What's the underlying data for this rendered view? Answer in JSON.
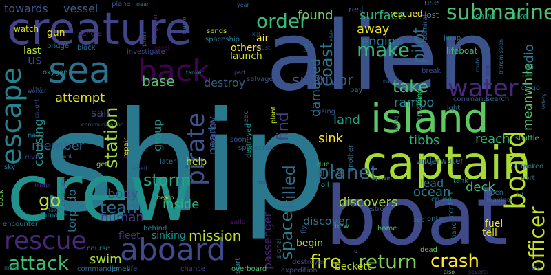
{
  "background": "#000000",
  "words": [
    {
      "text": "ship",
      "color": "#2a788e"
    },
    {
      "text": "alien",
      "color": "#3b528b"
    },
    {
      "text": "crew",
      "color": "#21918c"
    },
    {
      "text": "boat",
      "color": "#3e4a89"
    },
    {
      "text": "creature",
      "color": "#414487"
    },
    {
      "text": "captain",
      "color": "#a5db36"
    },
    {
      "text": "island",
      "color": "#5ec962"
    },
    {
      "text": "sea",
      "color": "#2c728e"
    },
    {
      "text": "aboard",
      "color": "#3e4a89"
    },
    {
      "text": "back",
      "color": "#440154"
    },
    {
      "text": "escape",
      "color": "#26828e"
    },
    {
      "text": "water",
      "color": "#482878"
    },
    {
      "text": "rescue",
      "color": "#482878"
    },
    {
      "text": "submarine",
      "color": "#4ac16d"
    },
    {
      "text": "board",
      "color": "#b8de29"
    },
    {
      "text": "pirate",
      "color": "#3b528b"
    },
    {
      "text": "order",
      "color": "#38b977"
    },
    {
      "text": "attack",
      "color": "#3dbc74"
    },
    {
      "text": "return",
      "color": "#7ad151"
    },
    {
      "text": "crash",
      "color": "#fde725"
    },
    {
      "text": "fire",
      "color": "#d2e21b"
    },
    {
      "text": "planet",
      "color": "#31688e"
    },
    {
      "text": "officer",
      "color": "#c8e020"
    },
    {
      "text": "make",
      "color": "#35b779"
    },
    {
      "text": "survivor",
      "color": "#3a548c"
    },
    {
      "text": "take",
      "color": "#4ac16d"
    },
    {
      "text": "storm",
      "color": "#22a884"
    },
    {
      "text": "station",
      "color": "#9fda3a"
    },
    {
      "text": "team",
      "color": "#2c728e"
    },
    {
      "text": "killed",
      "color": "#2e6e8e"
    },
    {
      "text": "space",
      "color": "#287d8e"
    },
    {
      "text": "coast",
      "color": "#2a788e"
    },
    {
      "text": "pilot",
      "color": "#306a8e"
    },
    {
      "text": "found",
      "color": "#6ccd5a"
    },
    {
      "text": "surface",
      "color": "#2db27d"
    },
    {
      "text": "mission",
      "color": "#bddf26"
    },
    {
      "text": "ocean",
      "color": "#25858e"
    },
    {
      "text": "find",
      "color": "#433e85"
    },
    {
      "text": "discovers",
      "color": "#a0da39"
    },
    {
      "text": "go",
      "color": "#c2df23"
    },
    {
      "text": "base",
      "color": "#50c46a"
    },
    {
      "text": "reach",
      "color": "#2fb47c"
    },
    {
      "text": "away",
      "color": "#e5e419"
    },
    {
      "text": "deck",
      "color": "#3dbc74"
    },
    {
      "text": "radio",
      "color": "#2a788e"
    },
    {
      "text": "damaged",
      "color": "#2e6e8e"
    },
    {
      "text": "engine",
      "color": "#2a768e"
    },
    {
      "text": "rambo",
      "color": "#27808e"
    },
    {
      "text": "tibbs",
      "color": "#2db27d"
    },
    {
      "text": "meanwhile",
      "color": "#54c568"
    },
    {
      "text": "sink",
      "color": "#fde725"
    },
    {
      "text": "land",
      "color": "#1f9f88"
    },
    {
      "text": "body",
      "color": "#3b528b"
    },
    {
      "text": "torpedo",
      "color": "#2a788e"
    },
    {
      "text": "human",
      "color": "#443a83"
    },
    {
      "text": "inside",
      "color": "#2db27d"
    },
    {
      "text": "swim",
      "color": "#addc30"
    },
    {
      "text": "destroy",
      "color": "#355f8d"
    },
    {
      "text": "attempt",
      "color": "#dde318"
    },
    {
      "text": "member",
      "color": "#31688e"
    },
    {
      "text": "causing",
      "color": "#21918c"
    },
    {
      "text": "towards",
      "color": "#39558c"
    },
    {
      "text": "vessel",
      "color": "#34618d"
    },
    {
      "text": "passenger",
      "color": "#482475"
    },
    {
      "text": "discover",
      "color": "#2b748e"
    },
    {
      "text": "nearby",
      "color": "#33638d"
    },
    {
      "text": "group",
      "color": "#20928c"
    },
    {
      "text": "lead",
      "color": "#2b748e"
    },
    {
      "text": "sail",
      "color": "#3e4989"
    },
    {
      "text": "us",
      "color": "#3f4788"
    },
    {
      "text": "beckett",
      "color": "#c2df23"
    },
    {
      "text": "fleet",
      "color": "#46337f"
    },
    {
      "text": "sinking",
      "color": "#21918c"
    },
    {
      "text": "fuel",
      "color": "#fde725"
    },
    {
      "text": "tell",
      "color": "#e2e418"
    },
    {
      "text": "begin",
      "color": "#b5de2b"
    },
    {
      "text": "killing",
      "color": "#2d718e"
    },
    {
      "text": "help",
      "color": "#c8e020"
    },
    {
      "text": "others",
      "color": "#fde725"
    },
    {
      "text": "launch",
      "color": "#d0e11c"
    },
    {
      "text": "air",
      "color": "#fde725"
    },
    {
      "text": "gun",
      "color": "#e7e419"
    },
    {
      "text": "last",
      "color": "#b5de2b"
    },
    {
      "text": "watch",
      "color": "#d8e219"
    },
    {
      "text": "plane",
      "color": "#3b528b"
    },
    {
      "text": "near",
      "color": "#23888e"
    },
    {
      "text": "year",
      "color": "#31688e"
    },
    {
      "text": "use",
      "color": "#2d708e"
    },
    {
      "text": "rest",
      "color": "#3b528b"
    },
    {
      "text": "rescued",
      "color": "#f1e51d"
    },
    {
      "text": "lost",
      "color": "#26828e"
    },
    {
      "text": "save",
      "color": "#1f9a8a"
    },
    {
      "text": "like",
      "color": "#22a785"
    },
    {
      "text": "lifeboat",
      "color": "#3aba76"
    },
    {
      "text": "admiral",
      "color": "#34618d"
    },
    {
      "text": "spaceship",
      "color": "#297b8e"
    },
    {
      "text": "sends",
      "color": "#b8de29"
    },
    {
      "text": "plan",
      "color": "#424086"
    },
    {
      "text": "ashore",
      "color": "#482979"
    },
    {
      "text": "bridge",
      "color": "#2c728e"
    },
    {
      "text": "black",
      "color": "#2d718e"
    },
    {
      "text": "investigate",
      "color": "#3f4788"
    },
    {
      "text": "naval",
      "color": "#450559"
    },
    {
      "text": "engineer",
      "color": "#453581"
    },
    {
      "text": "oxygen",
      "color": "#21908d"
    },
    {
      "text": "tanker",
      "color": "#26828e"
    },
    {
      "text": "salvage",
      "color": "#3a548c"
    },
    {
      "text": "using",
      "color": "#3b528b"
    },
    {
      "text": "due",
      "color": "#60ca60"
    },
    {
      "text": "bay",
      "color": "#26828e"
    },
    {
      "text": "another",
      "color": "#2d718e"
    },
    {
      "text": "underwater",
      "color": "#2d718e"
    },
    {
      "text": "attacked",
      "color": "#2a788e"
    },
    {
      "text": "shuttle",
      "color": "#4ac16d"
    },
    {
      "text": "command",
      "color": "#3b528b"
    },
    {
      "text": "search",
      "color": "#2c738e"
    },
    {
      "text": "remaining",
      "color": "#3dbc74"
    },
    {
      "text": "light",
      "color": "#2d718e"
    },
    {
      "text": "get",
      "color": "#7fd34e"
    },
    {
      "text": "later",
      "color": "#2c728e"
    },
    {
      "text": "sky",
      "color": "#2c728e"
    },
    {
      "text": "dive",
      "color": "#3e4c8a"
    },
    {
      "text": "navy",
      "color": "#2b758e"
    },
    {
      "text": "plant",
      "color": "#bddf26"
    },
    {
      "text": "destroyed",
      "color": "#1f998a"
    },
    {
      "text": "spacecraft",
      "color": "#38598c"
    },
    {
      "text": "soon",
      "color": "#39568c"
    },
    {
      "text": "head",
      "color": "#32648e"
    },
    {
      "text": "control",
      "color": "#414487"
    },
    {
      "text": "repair",
      "color": "#fde725"
    },
    {
      "text": "communication",
      "color": "#2d708e"
    },
    {
      "text": "giant",
      "color": "#2b758e"
    },
    {
      "text": "caught",
      "color": "#3e4a89"
    },
    {
      "text": "small",
      "color": "#3e4a89"
    },
    {
      "text": "map",
      "color": "#472c7a"
    },
    {
      "text": "damage",
      "color": "#26818e"
    },
    {
      "text": "dock",
      "color": "#77d153"
    },
    {
      "text": "encounter",
      "color": "#24878e"
    },
    {
      "text": "mate",
      "color": "#31688e"
    },
    {
      "text": "commander",
      "color": "#32658e"
    },
    {
      "text": "course",
      "color": "#2a788e"
    },
    {
      "text": "jones",
      "color": "#27808e"
    },
    {
      "text": "life",
      "color": "#3b528b"
    },
    {
      "text": "overboard",
      "color": "#4ac16d"
    },
    {
      "text": "chance",
      "color": "#443a83"
    },
    {
      "text": "start",
      "color": "#2a788e"
    },
    {
      "text": "expedition",
      "color": "#3c4f8a"
    },
    {
      "text": "behind",
      "color": "#26828e"
    },
    {
      "text": "sailor",
      "color": "#481769"
    },
    {
      "text": "fly",
      "color": "#3a548c"
    },
    {
      "text": "signal",
      "color": "#25858e"
    },
    {
      "text": "destroyer",
      "color": "#404588"
    },
    {
      "text": "oil",
      "color": "#22a884"
    },
    {
      "text": "set",
      "color": "#2c738e"
    },
    {
      "text": "cruise",
      "color": "#29798e"
    },
    {
      "text": "onto",
      "color": "#2b748e"
    },
    {
      "text": "new",
      "color": "#2fb47c"
    },
    {
      "text": "home",
      "color": "#4ac16d"
    },
    {
      "text": "dead",
      "color": "#5ec962"
    },
    {
      "text": "hand",
      "color": "#2a788e"
    },
    {
      "text": "contact",
      "color": "#26828e"
    },
    {
      "text": "leaving",
      "color": "#2d708e"
    },
    {
      "text": "open",
      "color": "#2d718e"
    },
    {
      "text": "port",
      "color": "#31688e"
    },
    {
      "text": "hit",
      "color": "#2d718e"
    },
    {
      "text": "tank",
      "color": "#21908d"
    },
    {
      "text": "system",
      "color": "#1f9e89"
    },
    {
      "text": "destroys",
      "color": "#38588c"
    },
    {
      "text": "try",
      "color": "#2a788e"
    },
    {
      "text": "also",
      "color": "#70cf57"
    },
    {
      "text": "several",
      "color": "#46307e"
    },
    {
      "text": "break",
      "color": "#3e4989"
    },
    {
      "text": "jump",
      "color": "#2c728e"
    },
    {
      "text": "route",
      "color": "#32658e"
    },
    {
      "text": "one",
      "color": "#46327e"
    },
    {
      "text": "transmission",
      "color": "#306a8e"
    },
    {
      "text": "safety",
      "color": "#34618d"
    },
    {
      "text": "able",
      "color": "#2a768e"
    },
    {
      "text": "kill",
      "color": "#2c728e"
    },
    {
      "text": "must",
      "color": "#3c4f8a"
    },
    {
      "text": "part",
      "color": "#3b528b"
    },
    {
      "text": "worker",
      "color": "#3b528b"
    },
    {
      "text": "crax",
      "color": "#2a788e"
    },
    {
      "text": "long",
      "color": "#3e4989"
    },
    {
      "text": "along",
      "color": "#25838e"
    },
    {
      "text": "manages",
      "color": "#3b528b"
    },
    {
      "text": "memo",
      "color": "#2d708e"
    },
    {
      "text": "explosion",
      "color": "#2c728e"
    },
    {
      "text": "beach",
      "color": "#b8de29"
    },
    {
      "text": "tail",
      "color": "#31688e"
    },
    {
      "text": "taken",
      "color": "#38598c"
    },
    {
      "text": "eventually",
      "color": "#3e4a89"
    },
    {
      "text": "come",
      "color": "#3f4889"
    },
    {
      "text": "cargo",
      "color": "#32648e"
    },
    {
      "text": "pod",
      "color": "#2a788e"
    },
    {
      "text": "u",
      "color": "#2c728e"
    },
    {
      "text": "uses",
      "color": "#2c728e"
    },
    {
      "text": "collect",
      "color": "#2c728e"
    }
  ]
}
